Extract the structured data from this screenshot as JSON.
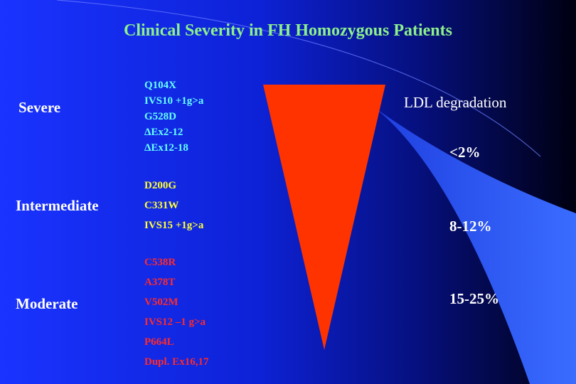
{
  "colors": {
    "background_left": "#1a33ff",
    "background_right": "#000010",
    "triangle": "#ff3300",
    "title": "#8cf08c",
    "severe_mutations": "#66ffff",
    "intermediate_mutations": "#ffff33",
    "moderate_mutations": "#ff2a2a"
  },
  "title": "Clinical Severity in FH Homozygous Patients",
  "categories": {
    "severe": "Severe",
    "intermediate": "Intermediate",
    "moderate": "Moderate"
  },
  "mutations": {
    "severe": [
      "Q104X",
      "IVS10 +1g>a",
      "G528D",
      "ΔEx2-12",
      "ΔEx12-18"
    ],
    "intermediate": [
      "D200G",
      "C331W",
      "IVS15 +1g>a"
    ],
    "moderate": [
      "C538R",
      "A378T",
      "V502M",
      "IVS12 –1 g>a",
      "P664L",
      "Dupl. Ex16,17"
    ]
  },
  "ldl": {
    "label": "LDL degradation",
    "severe": "<2%",
    "intermediate": "8-12%",
    "moderate": "15-25%"
  }
}
